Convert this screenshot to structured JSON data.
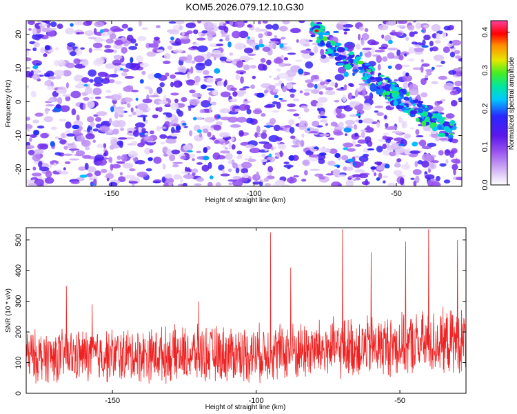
{
  "title": "KOM5.2026.079.12.10.G30",
  "chart_data": [
    {
      "type": "heatmap",
      "xlabel": "Height of straight line (km)",
      "ylabel": "Frequency (Hz)",
      "colorbar_label": "Normalized spectral amplitude",
      "xlim": [
        -180,
        -27
      ],
      "ylim": [
        -25,
        24
      ],
      "xticks": [
        -150,
        -100,
        -50
      ],
      "yticks": [
        -20,
        -10,
        0,
        10,
        20
      ],
      "clim": [
        0,
        0.43
      ],
      "cticks": [
        0.0,
        0.1,
        0.2,
        0.3,
        0.4
      ],
      "colormap": [
        "#ffffff",
        "#e2cff8",
        "#9b55f0",
        "#5a18ec",
        "#2828ff",
        "#00c8ff",
        "#00e6a0",
        "#44ee22",
        "#e6e600",
        "#ff8c00",
        "#ff0000",
        "#ff40a0"
      ],
      "colormap_positions": [
        0,
        0.06,
        0.2,
        0.3,
        0.42,
        0.52,
        0.6,
        0.68,
        0.76,
        0.85,
        0.92,
        1.0
      ],
      "ridge": {
        "description_points": [
          [
            -80,
            23
          ],
          [
            -70,
            14
          ],
          [
            -60,
            8
          ],
          [
            -50,
            2
          ],
          [
            -40,
            -4
          ],
          [
            -30,
            -9
          ]
        ],
        "peak": {
          "x": -78,
          "y": 21,
          "value": 0.42
        }
      },
      "grid": false
    },
    {
      "type": "line",
      "xlabel": "Height of straight line (km)",
      "ylabel": "SNR (10 * v/v)",
      "xlim": [
        -180,
        -27
      ],
      "ylim": [
        0,
        540
      ],
      "xticks": [
        -150,
        -100,
        -50
      ],
      "yticks": [
        0,
        100,
        200,
        300,
        400,
        500
      ],
      "color": "#ee2222",
      "trend": {
        "x": [
          -180,
          -100,
          -27
        ],
        "mean": [
          120,
          130,
          170
        ],
        "spread": [
          95,
          105,
          120
        ]
      },
      "spikes": [
        {
          "x": -166,
          "y": 350
        },
        {
          "x": -157,
          "y": 290
        },
        {
          "x": -120,
          "y": 300
        },
        {
          "x": -95,
          "y": 525
        },
        {
          "x": -88,
          "y": 410
        },
        {
          "x": -70,
          "y": 535
        },
        {
          "x": -60,
          "y": 460
        },
        {
          "x": -48,
          "y": 495
        },
        {
          "x": -40,
          "y": 535
        },
        {
          "x": -30,
          "y": 500
        }
      ],
      "grid": false
    }
  ]
}
